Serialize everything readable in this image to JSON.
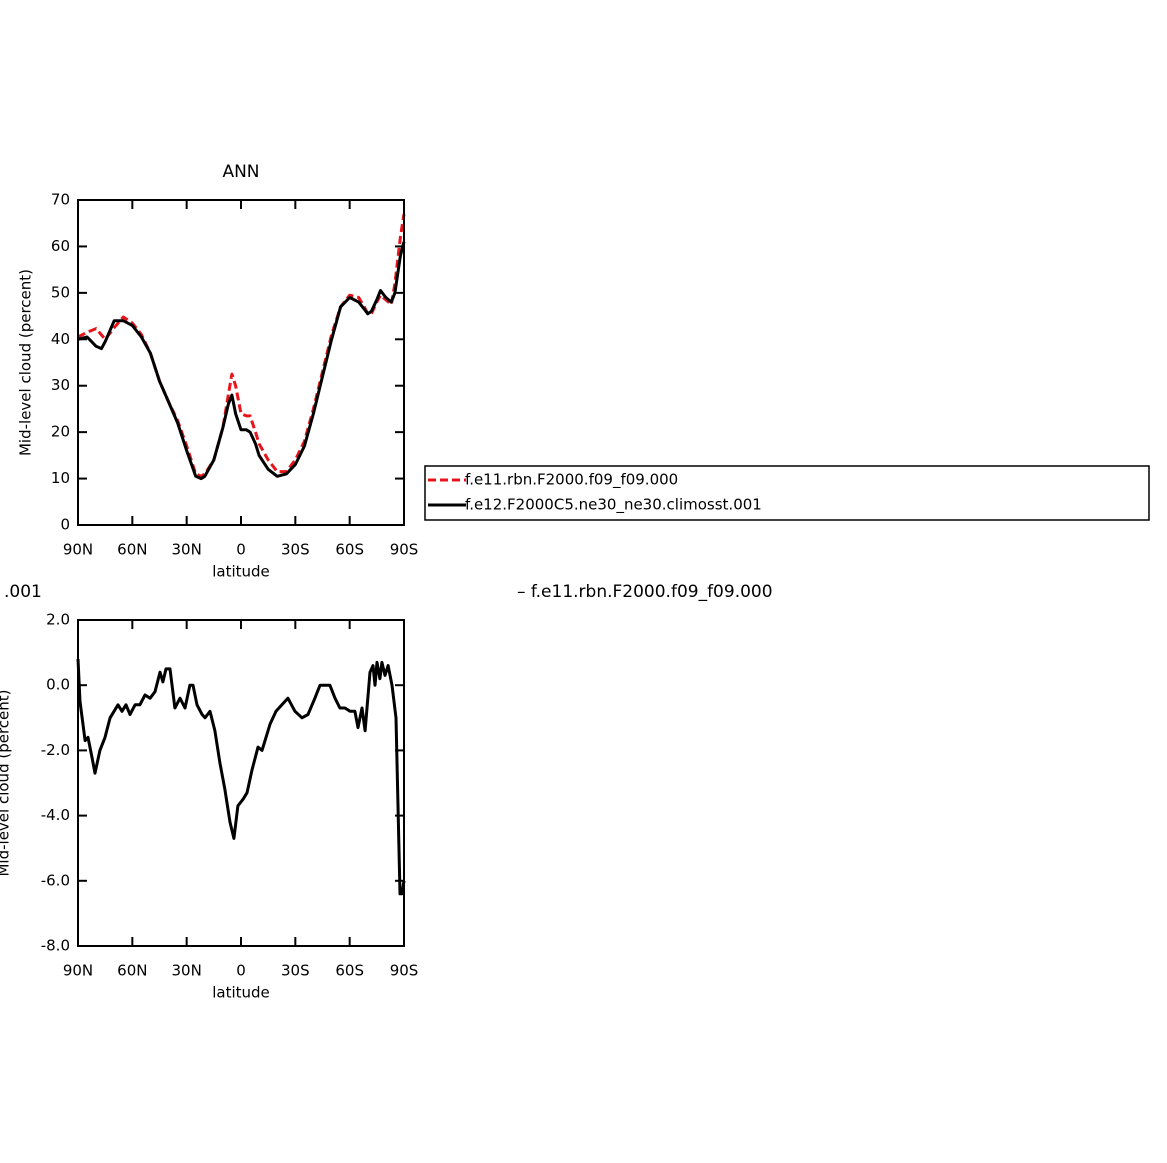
{
  "chart_data": [
    {
      "type": "line",
      "title": "ANN",
      "ylabel": "Mid-level cloud (percent)",
      "xlabel": "latitude",
      "xlim": [
        90,
        -90
      ],
      "xticks": [
        {
          "value": 90,
          "label": "90N"
        },
        {
          "value": 60,
          "label": "60N"
        },
        {
          "value": 30,
          "label": "30N"
        },
        0,
        {
          "value": -30,
          "label": "30S"
        },
        {
          "value": -60,
          "label": "60S"
        },
        {
          "value": -90,
          "label": "90S"
        }
      ],
      "ylim": [
        0,
        70
      ],
      "yticks": [
        0,
        10,
        20,
        30,
        40,
        50,
        60,
        70
      ],
      "legend": "right",
      "series": [
        {
          "name": "f.e11.rbn.F2000.f09_f09.000",
          "color": "#e8141b",
          "dash": "dashed",
          "x": [
            90,
            85,
            80,
            75,
            70,
            65,
            60,
            55,
            50,
            45,
            40,
            35,
            30,
            25,
            22,
            20,
            15,
            10,
            7,
            5,
            3,
            0,
            -3,
            -5,
            -8,
            -10,
            -15,
            -20,
            -25,
            -30,
            -35,
            -40,
            -45,
            -50,
            -55,
            -60,
            -65,
            -68,
            -70,
            -72,
            -75,
            -77,
            -80,
            -83,
            -85,
            -88,
            -90
          ],
          "values": [
            40.5,
            41.5,
            42.3,
            40,
            42.5,
            44.8,
            43.5,
            41,
            37,
            31,
            26.5,
            22.5,
            17,
            11,
            10.5,
            11,
            14,
            21,
            28,
            32.5,
            30,
            24,
            23.5,
            23.5,
            20,
            17.5,
            14,
            11.5,
            11.5,
            14,
            18,
            25,
            33,
            41,
            47,
            49.5,
            49,
            47,
            45.5,
            45.5,
            48,
            49.5,
            48.5,
            47.5,
            52,
            62,
            67
          ]
        },
        {
          "name": "f.e12.F2000C5.ne30_ne30.climosst.001",
          "color": "#000000",
          "dash": "solid",
          "x": [
            90,
            85,
            80,
            77,
            75,
            70,
            65,
            60,
            55,
            50,
            45,
            40,
            35,
            30,
            25,
            22,
            20,
            15,
            10,
            7,
            5,
            3,
            0,
            -3,
            -5,
            -8,
            -10,
            -15,
            -20,
            -25,
            -30,
            -35,
            -40,
            -45,
            -50,
            -55,
            -60,
            -65,
            -68,
            -70,
            -72,
            -75,
            -77,
            -80,
            -83,
            -85,
            -88,
            -90
          ],
          "values": [
            40,
            40.5,
            38.5,
            38,
            39.5,
            44,
            44,
            43,
            40.5,
            37,
            31,
            26.5,
            22,
            16,
            10.5,
            10,
            10.5,
            14,
            21,
            26,
            28,
            24,
            20.5,
            20.5,
            20,
            17.5,
            15,
            12,
            10.5,
            11,
            13,
            17,
            24,
            32,
            40,
            47,
            49,
            48,
            46.5,
            45.5,
            46,
            48.5,
            50.5,
            49,
            48,
            50,
            58,
            61
          ]
        }
      ]
    },
    {
      "type": "line",
      "title_left": ".001",
      "title_right": "– f.e11.rbn.F2000.f09_f09.000",
      "ylabel": "Mid-level cloud (percent)",
      "xlabel": "latitude",
      "xlim": [
        90,
        -90
      ],
      "xticks": [
        {
          "value": 90,
          "label": "90N"
        },
        {
          "value": 60,
          "label": "60N"
        },
        {
          "value": 30,
          "label": "30N"
        },
        0,
        {
          "value": -30,
          "label": "30S"
        },
        {
          "value": -60,
          "label": "60S"
        },
        {
          "value": -90,
          "label": "90S"
        }
      ],
      "ylim": [
        -8,
        2
      ],
      "yticks": [
        {
          "value": -8,
          "label": "-8.0"
        },
        {
          "value": -6,
          "label": "-6.0"
        },
        {
          "value": -4,
          "label": "-4.0"
        },
        {
          "value": -2,
          "label": "-2.0"
        },
        {
          "value": 0,
          "label": "0.0"
        },
        {
          "value": 2,
          "label": "2.0"
        }
      ],
      "series": [
        {
          "color": "#000000",
          "dash": "solid",
          "x": [
            90,
            88.9,
            86.1,
            84.5,
            82.3,
            80.6,
            77.9,
            75.1,
            72.3,
            67.9,
            65.7,
            63.5,
            61.3,
            58.5,
            55.8,
            53.0,
            50.2,
            47.5,
            44.7,
            43.1,
            41.4,
            39.2,
            36.5,
            33.7,
            30.9,
            28.2,
            26.5,
            24.3,
            21.5,
            19.9,
            17.1,
            14.4,
            11.6,
            8.9,
            6.1,
            3.9,
            1.7,
            -1.1,
            -3.3,
            -6.1,
            -9.4,
            -11.6,
            -13.8,
            -16.0,
            -19.3,
            -22.6,
            -25.9,
            -29.8,
            -33.7,
            -37.0,
            -40.8,
            -43.6,
            -46.9,
            -49.1,
            -51.9,
            -54.6,
            -57.4,
            -60.2,
            -62.9,
            -64.6,
            -66.8,
            -68.5,
            -71.2,
            -72.9,
            -74.0,
            -75.1,
            -76.7,
            -77.8,
            -79.5,
            -81.2,
            -83.4,
            -85.6,
            -87.8,
            -88.9,
            -90
          ],
          "values": [
            0.8,
            -0.5,
            -1.7,
            -1.6,
            -2.2,
            -2.7,
            -2.0,
            -1.6,
            -1.0,
            -0.6,
            -0.8,
            -0.6,
            -0.9,
            -0.6,
            -0.6,
            -0.3,
            -0.4,
            -0.2,
            0.4,
            0.1,
            0.5,
            0.5,
            -0.7,
            -0.4,
            -0.7,
            0.0,
            0.0,
            -0.6,
            -0.9,
            -1.0,
            -0.8,
            -1.4,
            -2.4,
            -3.2,
            -4.2,
            -4.7,
            -3.7,
            -3.5,
            -3.3,
            -2.6,
            -1.9,
            -2.0,
            -1.6,
            -1.2,
            -0.8,
            -0.6,
            -0.4,
            -0.8,
            -1.0,
            -0.9,
            -0.4,
            0.0,
            0.0,
            0.0,
            -0.4,
            -0.7,
            -0.7,
            -0.8,
            -0.8,
            -1.3,
            -0.7,
            -1.4,
            0.4,
            0.6,
            0.0,
            0.7,
            0.2,
            0.7,
            0.3,
            0.6,
            0.0,
            -1.0,
            -6.4,
            -6.4,
            -6.0
          ]
        }
      ]
    }
  ]
}
